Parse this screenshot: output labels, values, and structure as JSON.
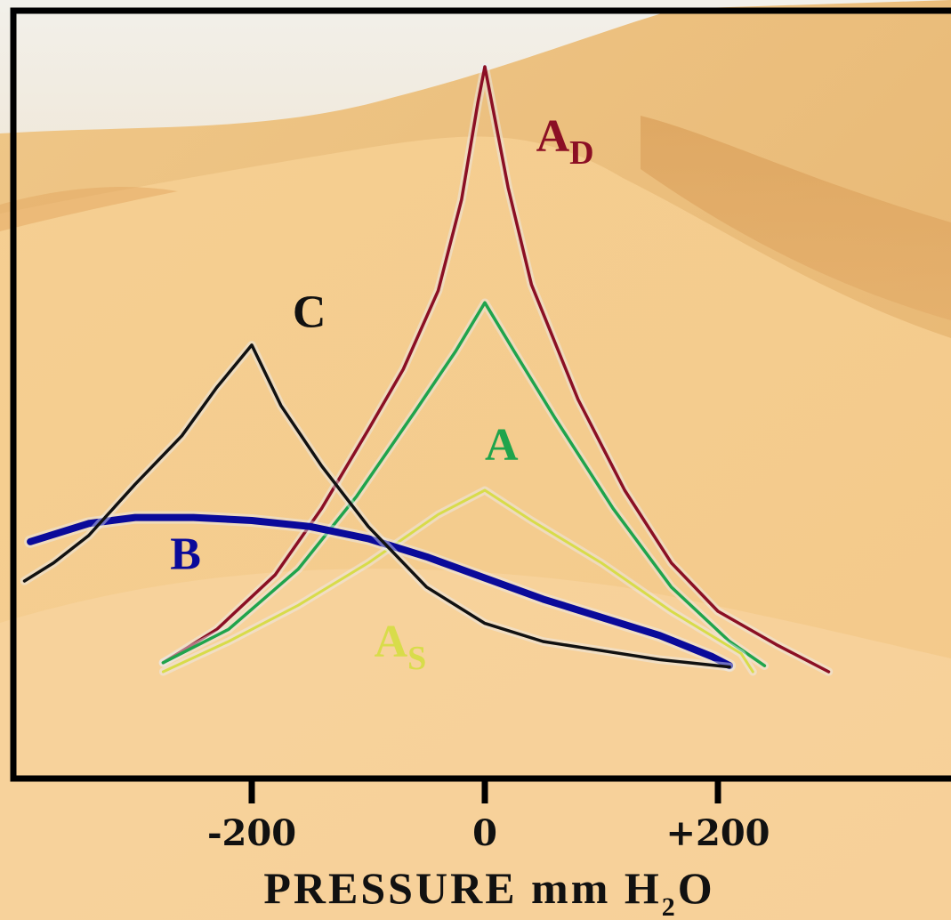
{
  "chart_data": {
    "type": "line",
    "xlabel": {
      "main": "PRESSURE mm H",
      "sub": "2",
      "tail": "O"
    },
    "x_ticks": [
      {
        "value": -200,
        "label": "-200"
      },
      {
        "value": 0,
        "label": "0"
      },
      {
        "value": 200,
        "label": "+200"
      }
    ],
    "xlim": [
      -400,
      400
    ],
    "ylim": [
      0,
      1
    ],
    "grid": false,
    "colors": {
      "AD": "#8b0f24",
      "A": "#1fa44c",
      "As": "#d8dc4a",
      "B": "#0a0a9a",
      "C": "#111111",
      "axis": "#000000"
    },
    "series": [
      {
        "name": "A",
        "sub": "D",
        "color": "#8b0f24",
        "label_at": {
          "x": 44,
          "y": 0.86
        },
        "points": [
          [
            -276,
            0.015
          ],
          [
            -230,
            0.07
          ],
          [
            -180,
            0.16
          ],
          [
            -140,
            0.27
          ],
          [
            -100,
            0.4
          ],
          [
            -70,
            0.5
          ],
          [
            -40,
            0.63
          ],
          [
            -20,
            0.78
          ],
          [
            -6,
            0.94
          ],
          [
            0,
            1.0
          ],
          [
            6,
            0.94
          ],
          [
            20,
            0.8
          ],
          [
            40,
            0.64
          ],
          [
            80,
            0.45
          ],
          [
            120,
            0.3
          ],
          [
            160,
            0.18
          ],
          [
            200,
            0.1
          ],
          [
            250,
            0.045
          ],
          [
            295,
            0.0
          ]
        ]
      },
      {
        "name": "A",
        "sub": "",
        "color": "#1fa44c",
        "label_at": {
          "x": 0,
          "y": 0.35
        },
        "points": [
          [
            -276,
            0.015
          ],
          [
            -220,
            0.07
          ],
          [
            -160,
            0.17
          ],
          [
            -110,
            0.29
          ],
          [
            -60,
            0.43
          ],
          [
            -25,
            0.53
          ],
          [
            0,
            0.61
          ],
          [
            25,
            0.53
          ],
          [
            60,
            0.42
          ],
          [
            110,
            0.27
          ],
          [
            160,
            0.14
          ],
          [
            210,
            0.05
          ],
          [
            240,
            0.01
          ]
        ]
      },
      {
        "name": "A",
        "sub": "S",
        "color": "#d8dc4a",
        "label_at": {
          "x": -95,
          "y": 0.025
        },
        "points": [
          [
            -276,
            0.0
          ],
          [
            -220,
            0.05
          ],
          [
            -160,
            0.11
          ],
          [
            -100,
            0.18
          ],
          [
            -40,
            0.26
          ],
          [
            0,
            0.3
          ],
          [
            40,
            0.25
          ],
          [
            100,
            0.18
          ],
          [
            160,
            0.1
          ],
          [
            220,
            0.03
          ],
          [
            230,
            0.0
          ]
        ]
      },
      {
        "name": "B",
        "sub": "",
        "color": "#0a0a9a",
        "label_at": {
          "x": -270,
          "y": 0.17
        },
        "points": [
          [
            -390,
            0.215
          ],
          [
            -340,
            0.245
          ],
          [
            -300,
            0.255
          ],
          [
            -250,
            0.255
          ],
          [
            -200,
            0.25
          ],
          [
            -150,
            0.24
          ],
          [
            -100,
            0.22
          ],
          [
            -50,
            0.19
          ],
          [
            0,
            0.155
          ],
          [
            50,
            0.12
          ],
          [
            100,
            0.09
          ],
          [
            150,
            0.06
          ],
          [
            195,
            0.025
          ],
          [
            210,
            0.01
          ]
        ]
      },
      {
        "name": "C",
        "sub": "",
        "color": "#111111",
        "label_at": {
          "x": -165,
          "y": 0.57
        },
        "points": [
          [
            -395,
            0.15
          ],
          [
            -370,
            0.18
          ],
          [
            -340,
            0.225
          ],
          [
            -300,
            0.31
          ],
          [
            -260,
            0.39
          ],
          [
            -230,
            0.47
          ],
          [
            -200,
            0.54
          ],
          [
            -175,
            0.44
          ],
          [
            -140,
            0.34
          ],
          [
            -100,
            0.24
          ],
          [
            -50,
            0.14
          ],
          [
            0,
            0.08
          ],
          [
            50,
            0.05
          ],
          [
            100,
            0.035
          ],
          [
            150,
            0.02
          ],
          [
            200,
            0.01
          ],
          [
            210,
            0.008
          ]
        ]
      }
    ]
  }
}
